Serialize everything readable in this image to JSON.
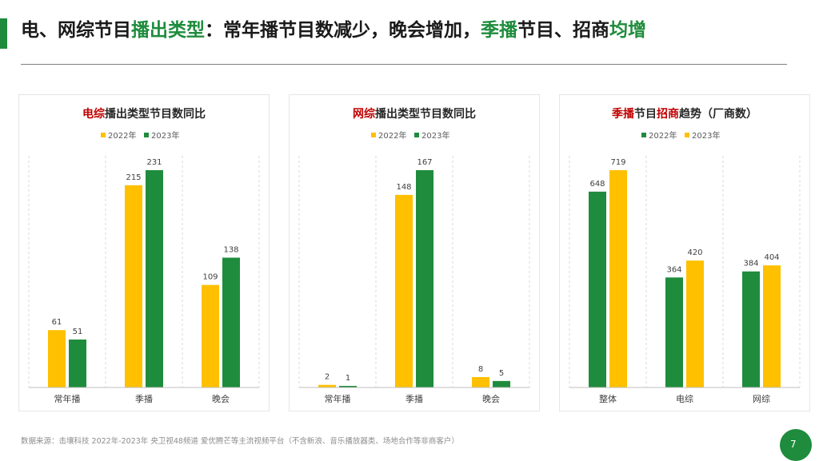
{
  "header": {
    "title_parts": [
      {
        "text": "电、网综节目",
        "green": false
      },
      {
        "text": "播出类型",
        "green": true
      },
      {
        "text": "：常年播节目数减少，晚会增加，",
        "green": false
      },
      {
        "text": "季播",
        "green": true
      },
      {
        "text": "节目、招商",
        "green": false
      },
      {
        "text": "均增",
        "green": true
      }
    ]
  },
  "footer": {
    "source": "数据来源：击壤科技 2022年-2023年 央卫视48频道 爱优腾芒等主流视频平台（不含新浪、音乐播放器类、场地合作等非商客户）",
    "page_number": "7"
  },
  "colors": {
    "green": "#1e8c3c",
    "yellow": "#ffc000",
    "red": "#c00000"
  },
  "chart_data": [
    {
      "type": "bar",
      "title_parts": [
        {
          "text": "电综",
          "red": true
        },
        {
          "text": "播出类型节目数同比",
          "red": false
        }
      ],
      "categories": [
        "常年播",
        "季播",
        "晚会"
      ],
      "series": [
        {
          "name": "2022年",
          "color": "#ffc000",
          "values": [
            61,
            215,
            109
          ]
        },
        {
          "name": "2023年",
          "color": "#1e8c3c",
          "values": [
            51,
            231,
            138
          ]
        }
      ],
      "ylim": [
        0,
        231
      ],
      "legend": "top-center",
      "gridlines": "vertical-dashed"
    },
    {
      "type": "bar",
      "title_parts": [
        {
          "text": "网综",
          "red": true
        },
        {
          "text": "播出类型节目数同比",
          "red": false
        }
      ],
      "categories": [
        "常年播",
        "季播",
        "晚会"
      ],
      "series": [
        {
          "name": "2022年",
          "color": "#ffc000",
          "values": [
            2,
            148,
            8
          ]
        },
        {
          "name": "2023年",
          "color": "#1e8c3c",
          "values": [
            1,
            167,
            5
          ]
        }
      ],
      "ylim": [
        0,
        167
      ],
      "legend": "top-center",
      "gridlines": "vertical-dashed"
    },
    {
      "type": "bar",
      "title_parts": [
        {
          "text": "季播",
          "red": true
        },
        {
          "text": "节目",
          "red": false
        },
        {
          "text": "招商",
          "red": true
        },
        {
          "text": "趋势（厂商数）",
          "red": false
        }
      ],
      "categories": [
        "整体",
        "电综",
        "网综"
      ],
      "series": [
        {
          "name": "2022年",
          "color": "#1e8c3c",
          "values": [
            648,
            364,
            384
          ]
        },
        {
          "name": "2023年",
          "color": "#ffc000",
          "values": [
            719,
            420,
            404
          ]
        }
      ],
      "ylim": [
        0,
        719
      ],
      "legend": "top-center",
      "gridlines": "vertical-dashed"
    }
  ]
}
